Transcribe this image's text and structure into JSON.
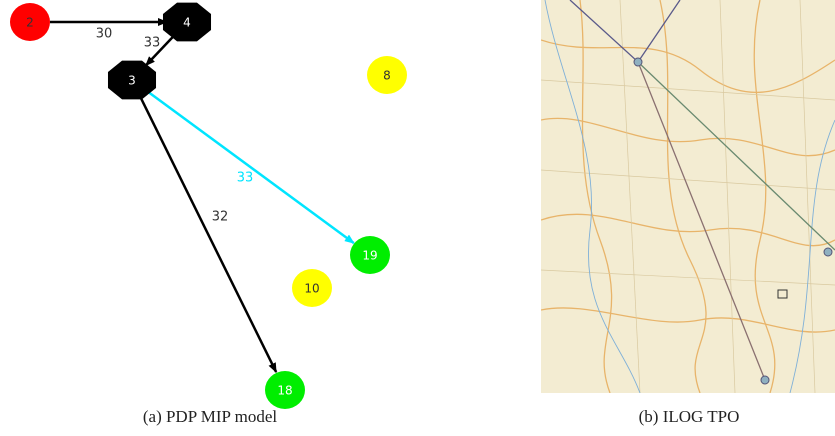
{
  "graph": {
    "nodes": [
      {
        "label": "2",
        "color": "#ff0000",
        "shape": "circle"
      },
      {
        "label": "4",
        "color": "#000000",
        "shape": "octagon"
      },
      {
        "label": "3",
        "color": "#000000",
        "shape": "octagon"
      },
      {
        "label": "8",
        "color": "#ffff00",
        "shape": "circle"
      },
      {
        "label": "19",
        "color": "#00ee00",
        "shape": "circle"
      },
      {
        "label": "10",
        "color": "#ffff00",
        "shape": "circle"
      },
      {
        "label": "18",
        "color": "#00ee00",
        "shape": "circle"
      }
    ],
    "edges": [
      {
        "from": 0,
        "to": 1,
        "label": "30",
        "color": "#000000"
      },
      {
        "from": 1,
        "to": 2,
        "label": "33",
        "color": "#000000"
      },
      {
        "from": 2,
        "to": 4,
        "label": "33",
        "color": "#00e5ff"
      },
      {
        "from": 2,
        "to": 6,
        "label": "32",
        "color": "#000000"
      }
    ]
  },
  "captions": [
    "(a) PDP MIP model",
    "(b) ILOG TPO"
  ]
}
